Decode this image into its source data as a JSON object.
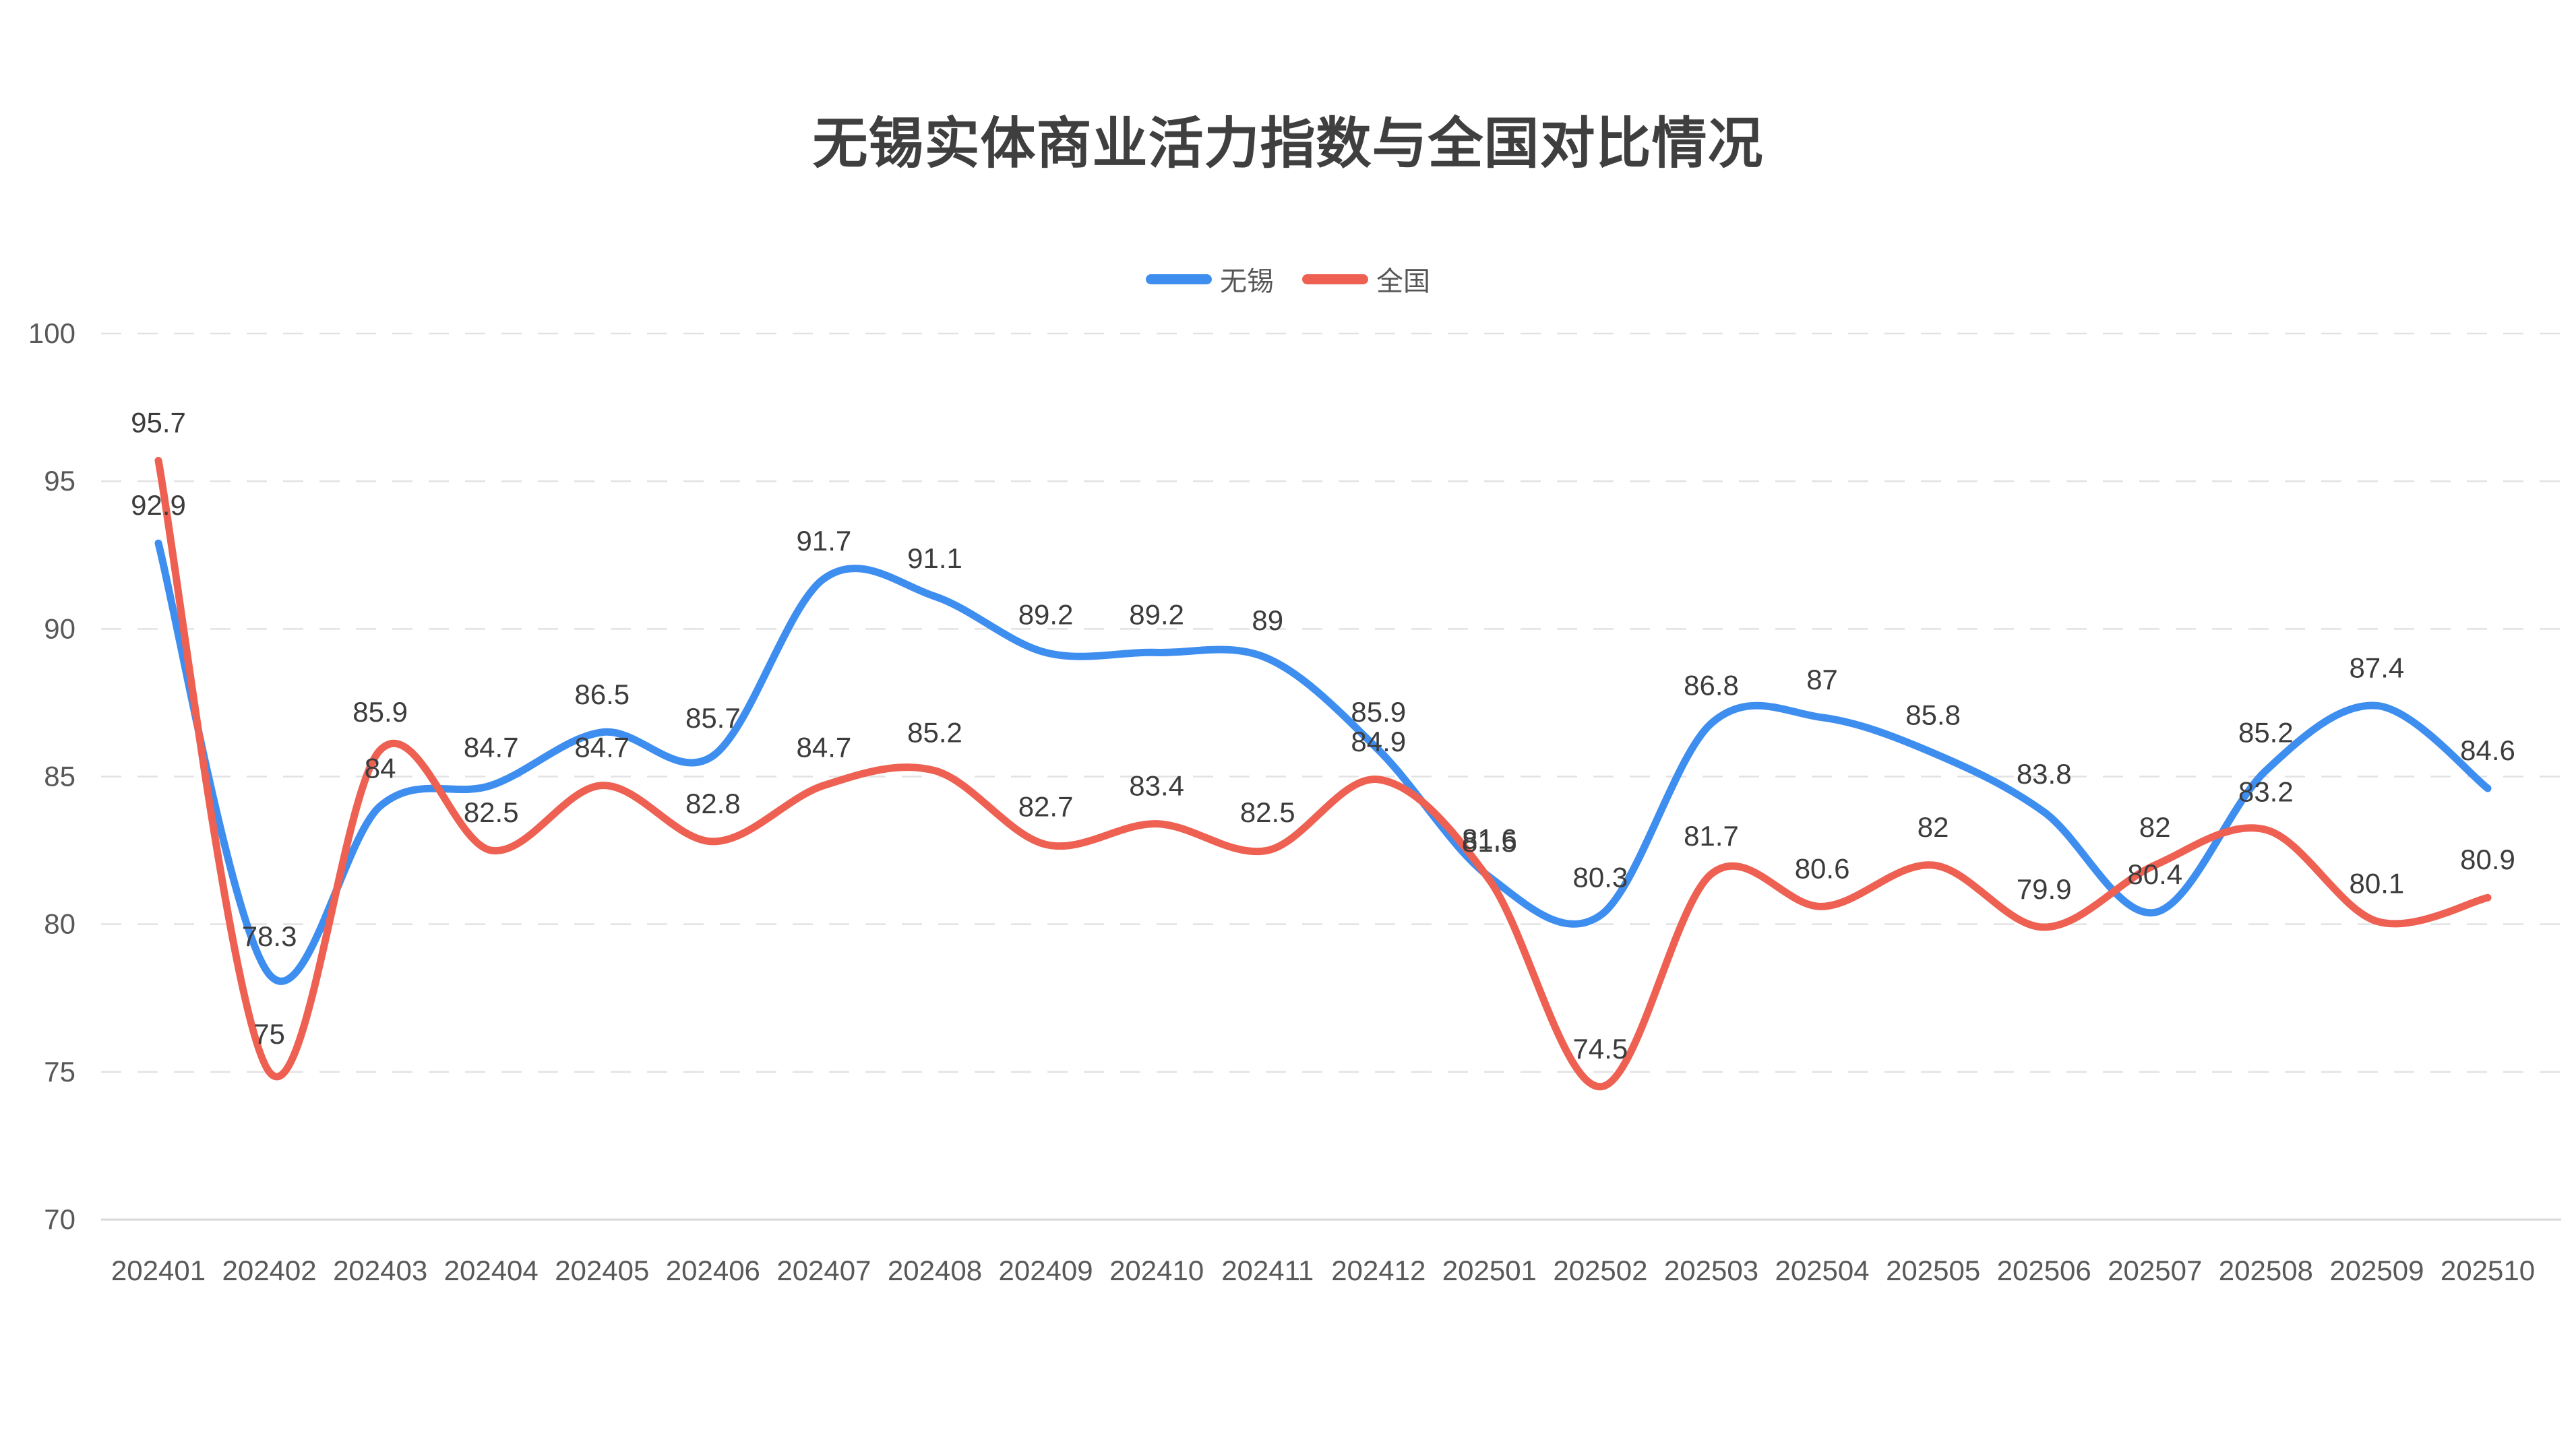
{
  "title": "无锡实体商业活力指数与全国对比情况",
  "legend": {
    "items": [
      {
        "label": "无锡",
        "color": "#3e8ef0"
      },
      {
        "label": "全国",
        "color": "#ee6152"
      }
    ]
  },
  "colors": {
    "wuxi_line": "#3e8ef0",
    "national_line": "#ee6152",
    "gridline": "#e2e2e2",
    "axis_line": "#d8d8d8",
    "axis_text": "#595959",
    "data_label_text": "#3c3c3c",
    "title_text": "#3f3f3f"
  },
  "chart_data": {
    "type": "line",
    "title": "无锡实体商业活力指数与全国对比情况",
    "x": [
      "202401",
      "202402",
      "202403",
      "202404",
      "202405",
      "202406",
      "202407",
      "202408",
      "202409",
      "202410",
      "202411",
      "202412",
      "202501",
      "202502",
      "202503",
      "202504",
      "202505",
      "202506",
      "202507",
      "202508",
      "202509",
      "202510"
    ],
    "series": [
      {
        "name": "无锡",
        "color": "#3e8ef0",
        "values": [
          92.9,
          78.3,
          84,
          84.7,
          86.5,
          85.7,
          91.7,
          91.1,
          89.2,
          89.2,
          89,
          85.9,
          81.6,
          80.3,
          86.8,
          87,
          85.8,
          83.8,
          80.4,
          85.2,
          87.4,
          84.6
        ]
      },
      {
        "name": "全国",
        "color": "#ee6152",
        "values": [
          95.7,
          75,
          85.9,
          82.5,
          84.7,
          82.8,
          84.7,
          85.2,
          82.7,
          83.4,
          82.5,
          84.9,
          81.5,
          74.5,
          81.7,
          80.6,
          82,
          79.9,
          82,
          83.2,
          80.1,
          80.9
        ]
      }
    ],
    "xlabel": "",
    "ylabel": "",
    "ylim": [
      70,
      100
    ],
    "yticks": [
      70,
      75,
      80,
      85,
      90,
      95,
      100
    ],
    "grid": true,
    "grid_style": "dashed",
    "legend_position": "top",
    "smooth": true,
    "data_labels": true
  }
}
